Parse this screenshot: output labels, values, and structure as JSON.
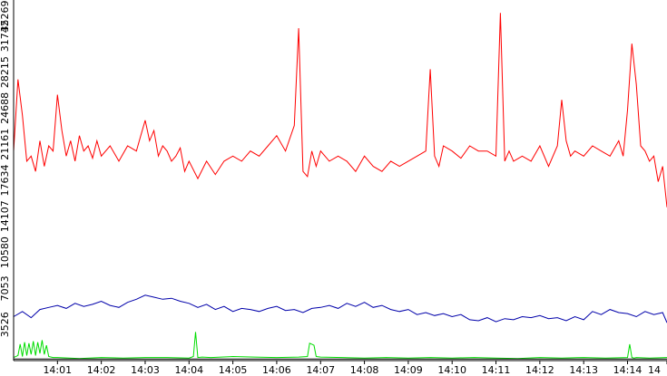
{
  "chart_data": {
    "type": "line",
    "grid": false,
    "ylim": [
      0,
      35269
    ],
    "xlim_minutes": [
      0,
      14.9
    ],
    "yticks": [
      3526,
      7053,
      10580,
      14107,
      17634,
      21161,
      24688,
      28215,
      31742,
      35269
    ],
    "xticks": [
      {
        "label": "14:01",
        "minute": 1
      },
      {
        "label": "14:02",
        "minute": 2
      },
      {
        "label": "14:03",
        "minute": 3
      },
      {
        "label": "14:04",
        "minute": 4
      },
      {
        "label": "14:05",
        "minute": 5
      },
      {
        "label": "14:06",
        "minute": 6
      },
      {
        "label": "14:07",
        "minute": 7
      },
      {
        "label": "14:08",
        "minute": 8
      },
      {
        "label": "14:09",
        "minute": 9
      },
      {
        "label": "14:10",
        "minute": 10
      },
      {
        "label": "14:11",
        "minute": 11
      },
      {
        "label": "14:12",
        "minute": 12
      },
      {
        "label": "14:13",
        "minute": 13
      },
      {
        "label": "14:14",
        "minute": 14
      },
      {
        "label": "14",
        "minute": 14.9
      }
    ],
    "series": [
      {
        "color": "#ff0000",
        "x": [
          0,
          0.1,
          0.2,
          0.3,
          0.4,
          0.5,
          0.6,
          0.7,
          0.8,
          0.9,
          1.0,
          1.1,
          1.2,
          1.3,
          1.4,
          1.5,
          1.6,
          1.7,
          1.8,
          1.9,
          2.0,
          2.2,
          2.4,
          2.6,
          2.8,
          2.9,
          3.0,
          3.1,
          3.2,
          3.3,
          3.4,
          3.5,
          3.6,
          3.7,
          3.8,
          3.9,
          4.0,
          4.2,
          4.4,
          4.6,
          4.8,
          5.0,
          5.2,
          5.4,
          5.6,
          5.8,
          6.0,
          6.2,
          6.4,
          6.5,
          6.6,
          6.7,
          6.8,
          6.9,
          7.0,
          7.2,
          7.4,
          7.6,
          7.8,
          8.0,
          8.2,
          8.4,
          8.6,
          8.8,
          9.0,
          9.2,
          9.4,
          9.5,
          9.6,
          9.7,
          9.8,
          10.0,
          10.2,
          10.4,
          10.6,
          10.8,
          11.0,
          11.1,
          11.2,
          11.3,
          11.4,
          11.6,
          11.8,
          12.0,
          12.2,
          12.4,
          12.5,
          12.6,
          12.7,
          12.8,
          13.0,
          13.2,
          13.4,
          13.6,
          13.8,
          13.9,
          14.0,
          14.1,
          14.2,
          14.3,
          14.4,
          14.5,
          14.6,
          14.7,
          14.8,
          14.9
        ],
        "y": [
          20500,
          27500,
          24000,
          19500,
          20000,
          18500,
          21500,
          19000,
          21000,
          20500,
          26000,
          22500,
          20000,
          21500,
          19500,
          22000,
          20500,
          21000,
          19800,
          21500,
          20000,
          21000,
          19500,
          21000,
          20500,
          22000,
          23500,
          21500,
          22500,
          20000,
          21000,
          20500,
          19500,
          20000,
          20800,
          18500,
          19500,
          17800,
          19500,
          18200,
          19500,
          20000,
          19500,
          20500,
          20000,
          21000,
          22000,
          20500,
          23000,
          32500,
          18500,
          18000,
          20500,
          19000,
          20500,
          19500,
          20000,
          19500,
          18500,
          20000,
          19000,
          18500,
          19500,
          19000,
          19500,
          20000,
          20500,
          28500,
          20000,
          19000,
          21000,
          20500,
          19800,
          21000,
          20500,
          20500,
          20000,
          34000,
          19500,
          20500,
          19500,
          20000,
          19500,
          21000,
          19000,
          21000,
          25500,
          21500,
          20000,
          20500,
          20000,
          21000,
          20500,
          20000,
          21500,
          20000,
          24500,
          31000,
          27000,
          21000,
          20500,
          19500,
          20000,
          17500,
          19000,
          15000
        ]
      },
      {
        "color": "#0000aa",
        "x": [
          0,
          0.2,
          0.4,
          0.6,
          0.8,
          1.0,
          1.2,
          1.4,
          1.6,
          1.8,
          2.0,
          2.2,
          2.4,
          2.6,
          2.8,
          3.0,
          3.2,
          3.4,
          3.6,
          3.8,
          4.0,
          4.2,
          4.4,
          4.6,
          4.8,
          5.0,
          5.2,
          5.4,
          5.6,
          5.8,
          6.0,
          6.2,
          6.4,
          6.6,
          6.8,
          7.0,
          7.2,
          7.4,
          7.6,
          7.8,
          8.0,
          8.2,
          8.4,
          8.6,
          8.8,
          9.0,
          9.2,
          9.4,
          9.6,
          9.8,
          10.0,
          10.2,
          10.4,
          10.6,
          10.8,
          11.0,
          11.2,
          11.4,
          11.6,
          11.8,
          12.0,
          12.2,
          12.4,
          12.6,
          12.8,
          13.0,
          13.2,
          13.4,
          13.6,
          13.8,
          14.0,
          14.2,
          14.4,
          14.6,
          14.8,
          14.9
        ],
        "y": [
          4300,
          4800,
          4200,
          5000,
          5200,
          5400,
          5100,
          5600,
          5300,
          5500,
          5800,
          5400,
          5200,
          5700,
          6000,
          6400,
          6200,
          6000,
          6100,
          5800,
          5600,
          5200,
          5500,
          5000,
          5300,
          4800,
          5100,
          5000,
          4800,
          5100,
          5300,
          4900,
          5000,
          4700,
          5100,
          5200,
          5400,
          5100,
          5600,
          5300,
          5700,
          5200,
          5400,
          5000,
          4800,
          5000,
          4500,
          4700,
          4400,
          4600,
          4300,
          4500,
          4000,
          3900,
          4200,
          3800,
          4100,
          4000,
          4300,
          4200,
          4400,
          4100,
          4200,
          3900,
          4300,
          4000,
          4800,
          4500,
          5000,
          4700,
          4600,
          4300,
          4800,
          4500,
          4700,
          3700
        ]
      },
      {
        "color": "#00dd00",
        "x": [
          0,
          0.1,
          0.15,
          0.2,
          0.25,
          0.3,
          0.35,
          0.4,
          0.45,
          0.5,
          0.55,
          0.6,
          0.65,
          0.7,
          0.75,
          0.8,
          0.9,
          1.0,
          1.5,
          2.0,
          2.5,
          3.0,
          3.5,
          4.0,
          4.1,
          4.15,
          4.2,
          4.3,
          4.5,
          5.0,
          5.5,
          6.0,
          6.5,
          6.7,
          6.75,
          6.8,
          6.85,
          6.9,
          7.0,
          7.5,
          8.0,
          8.5,
          9.0,
          9.5,
          10.0,
          10.5,
          11.0,
          11.5,
          12.0,
          12.5,
          13.0,
          13.5,
          14.0,
          14.05,
          14.1,
          14.15,
          14.2,
          14.5,
          14.9
        ],
        "y": [
          300,
          500,
          1600,
          400,
          1800,
          500,
          1700,
          600,
          1900,
          500,
          1800,
          700,
          2000,
          600,
          1500,
          400,
          300,
          300,
          200,
          300,
          250,
          300,
          300,
          250,
          400,
          2800,
          300,
          350,
          300,
          400,
          350,
          300,
          350,
          400,
          1700,
          1600,
          1500,
          400,
          350,
          300,
          250,
          300,
          250,
          300,
          250,
          300,
          250,
          200,
          300,
          250,
          300,
          250,
          300,
          1600,
          300,
          250,
          300,
          250,
          300
        ]
      },
      {
        "color": "#000000",
        "x": [
          0,
          14.9
        ],
        "y": [
          150,
          150
        ]
      }
    ]
  }
}
